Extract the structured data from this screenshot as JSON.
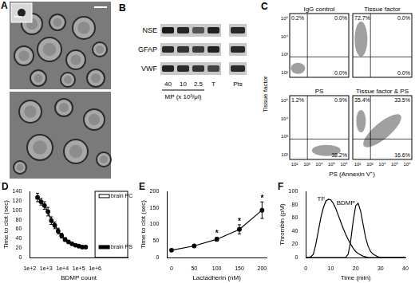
{
  "panel_A": {
    "label": "A"
  },
  "panel_B": {
    "label": "B",
    "rows": [
      "NSE",
      "GFAP",
      "VWF"
    ],
    "lanes": [
      "40",
      "10",
      "2.5",
      "T"
    ],
    "extra_lane": "Pts",
    "axis_label": "MP (x 10³/μl)"
  },
  "panel_C": {
    "label": "C",
    "x_label": "PS (Annexin V⁺)",
    "y_label": "Tissue factor",
    "xticks": [
      "10²",
      "10³",
      "10⁴",
      "10⁵",
      "10⁶"
    ],
    "yticks": [
      "10²",
      "10³",
      "10⁴",
      "10⁵"
    ],
    "plots": [
      {
        "title": "IgG control",
        "upper_left": "0.2%",
        "upper_right": "0.0%",
        "lower_right": "0.0%"
      },
      {
        "title": "Tissue factor",
        "upper_left": "72.7%",
        "upper_right": "0.0%",
        "lower_right": "0.0%"
      },
      {
        "title": "PS",
        "upper_left": "1.2%",
        "upper_right": "0.9%",
        "lower_right": "38.2%"
      },
      {
        "title": "Tissue factor & PS",
        "upper_left": "35.4%",
        "upper_right": "33.5%",
        "lower_right": "16.6%"
      }
    ]
  },
  "chart_data": [
    {
      "panel": "D",
      "type": "line",
      "x_label": "BDMP count",
      "y_label": "Time to clot (sec)",
      "log": "x",
      "grid": false,
      "marker": "circle",
      "line_style": "solid",
      "color": "#000000",
      "xlim": [
        100,
        100000000
      ],
      "xticks": [
        {
          "value": 100,
          "label": "1e+2"
        },
        {
          "value": 1000,
          "label": "1e+3"
        },
        {
          "value": 10000,
          "label": "1e+4"
        },
        {
          "value": 100000,
          "label": "1e+5"
        },
        {
          "value": 1000000,
          "label": "1e+6"
        }
      ],
      "ylim": [
        0,
        140
      ],
      "yticks": [
        0,
        20,
        40,
        60,
        80,
        100,
        120,
        140
      ],
      "x": [
        300,
        490,
        800,
        1300,
        2100,
        3400,
        5500,
        9000,
        14600,
        23700,
        38500,
        62500,
        101000,
        164000,
        266000
      ],
      "values": [
        127,
        118,
        110,
        97,
        78,
        68,
        56,
        46,
        38,
        33,
        29,
        26,
        24,
        22,
        22
      ],
      "errors": [
        9,
        7,
        8,
        9,
        8,
        7,
        6,
        5,
        4,
        3,
        3,
        2,
        2,
        2,
        2
      ],
      "references": [
        {
          "name": "brain PC",
          "value": 130,
          "color": "#ffffff"
        },
        {
          "name": "brain PS",
          "value": 22,
          "color": "#000000"
        }
      ]
    },
    {
      "panel": "E",
      "type": "line",
      "x_label": "Lactadherin (nM)",
      "y_label": "Time to clot (sec)",
      "grid": false,
      "marker": "circle",
      "line_style": "solid",
      "color": "#000000",
      "xlim": [
        -10,
        210
      ],
      "xticks": [
        0,
        50,
        100,
        150,
        200
      ],
      "ylim": [
        0,
        200
      ],
      "yticks": [
        0,
        50,
        100,
        150,
        200
      ],
      "x": [
        0,
        50,
        100,
        150,
        200
      ],
      "values": [
        22,
        35,
        55,
        85,
        143
      ],
      "errors": [
        3,
        4,
        6,
        14,
        25
      ],
      "annotations": [
        {
          "x": 100,
          "text": "*"
        },
        {
          "x": 150,
          "text": "*"
        },
        {
          "x": 200,
          "text": "*"
        }
      ]
    },
    {
      "panel": "F",
      "type": "line",
      "x_label": "Time (min)",
      "y_label": "Thrombin (pM)",
      "grid": false,
      "marker": "none",
      "line_style": "solid",
      "xlim": [
        0,
        40
      ],
      "xticks": [
        0,
        10,
        20,
        30,
        40
      ],
      "ylim": [
        0,
        100
      ],
      "yticks": [
        0,
        20,
        40,
        60,
        80,
        100
      ],
      "x": [
        0,
        1,
        2,
        3,
        4,
        5,
        6,
        7,
        8,
        9,
        10,
        11,
        12,
        13,
        14,
        15,
        16,
        17,
        18,
        19,
        20,
        21,
        22,
        23,
        24,
        25,
        26,
        27,
        28,
        29,
        30,
        31,
        32,
        33,
        34,
        35,
        36,
        37,
        38,
        39,
        40
      ],
      "series": [
        {
          "name": "TF",
          "color": "#000000",
          "values": [
            0,
            0,
            1,
            5,
            20,
            40,
            60,
            75,
            85,
            88,
            87,
            82,
            74,
            64,
            54,
            44,
            35,
            27,
            20,
            14,
            9,
            6,
            4,
            2,
            1,
            0,
            0,
            0,
            0,
            0,
            0,
            0,
            0,
            0,
            0,
            0,
            0,
            0,
            0,
            0,
            0
          ]
        },
        {
          "name": "BDMP",
          "color": "#000000",
          "values": [
            0,
            0,
            0,
            0,
            0,
            0,
            0,
            0,
            0,
            0,
            0,
            0,
            0,
            0,
            0,
            0,
            0,
            5,
            25,
            55,
            78,
            82,
            70,
            50,
            30,
            17,
            9,
            5,
            3,
            1,
            0,
            0,
            0,
            0,
            0,
            0,
            0,
            0,
            0,
            0,
            0
          ]
        }
      ]
    }
  ]
}
